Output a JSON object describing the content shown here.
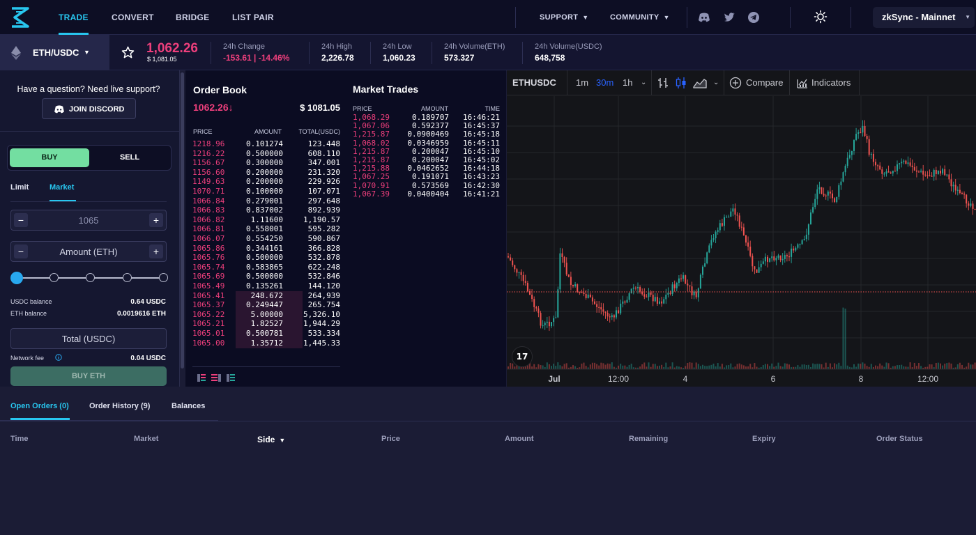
{
  "nav": {
    "links": [
      "TRADE",
      "CONVERT",
      "BRIDGE",
      "LIST PAIR"
    ],
    "support": "SUPPORT",
    "community": "COMMUNITY",
    "network": "zkSync - Mainnet",
    "accent": "#28c6ef"
  },
  "ticker": {
    "pair": "ETH/USDC",
    "price": "1,062.26",
    "price_usd": "$ 1,081.05",
    "change_label": "24h Change",
    "change_value": "-153.61 | -14.46%",
    "high_label": "24h High",
    "high_value": "2,226.78",
    "low_label": "24h Low",
    "low_value": "1,060.23",
    "vol_eth_label": "24h Volume(ETH)",
    "vol_eth_value": "573.327",
    "vol_usdc_label": "24h Volume(USDC)",
    "vol_usdc_value": "648,758"
  },
  "left": {
    "question": "Have a question? Need live support?",
    "discord": "JOIN DISCORD",
    "buy": "BUY",
    "sell": "SELL",
    "tab_limit": "Limit",
    "tab_market": "Market",
    "price_field": "1065",
    "amount_field": "Amount (ETH)",
    "usdc_balance_label": "USDC balance",
    "usdc_balance": "0.64 USDC",
    "eth_balance_label": "ETH balance",
    "eth_balance": "0.0019616 ETH",
    "total_field": "Total (USDC)",
    "fee_label": "Network fee",
    "fee_value": "0.04 USDC",
    "submit": "BUY ETH"
  },
  "orderbook": {
    "title": "Order Book",
    "last_price": "1062.26↓",
    "last_price_usd": "$ 1081.05",
    "headers": [
      "PRICE",
      "AMOUNT",
      "TOTAL(USDC)"
    ],
    "rows": [
      {
        "price": "1218.96",
        "amount": "0.101274",
        "total": "123.448"
      },
      {
        "price": "1216.22",
        "amount": "0.500000",
        "total": "608.110"
      },
      {
        "price": "1156.67",
        "amount": "0.300000",
        "total": "347.001"
      },
      {
        "price": "1156.60",
        "amount": "0.200000",
        "total": "231.320"
      },
      {
        "price": "1149.63",
        "amount": "0.200000",
        "total": "229.926"
      },
      {
        "price": "1070.71",
        "amount": "0.100000",
        "total": "107.071"
      },
      {
        "price": "1066.84",
        "amount": "0.279001",
        "total": "297.648"
      },
      {
        "price": "1066.83",
        "amount": "0.837002",
        "total": "892.939"
      },
      {
        "price": "1066.82",
        "amount": "1.11600",
        "total": "1,190.57"
      },
      {
        "price": "1066.81",
        "amount": "0.558001",
        "total": "595.282"
      },
      {
        "price": "1066.07",
        "amount": "0.554250",
        "total": "590.867"
      },
      {
        "price": "1065.86",
        "amount": "0.344161",
        "total": "366.828"
      },
      {
        "price": "1065.76",
        "amount": "0.500000",
        "total": "532.878"
      },
      {
        "price": "1065.74",
        "amount": "0.583865",
        "total": "622.248"
      },
      {
        "price": "1065.69",
        "amount": "0.500000",
        "total": "532.846"
      },
      {
        "price": "1065.49",
        "amount": "0.135261",
        "total": "144.120"
      },
      {
        "price": "1065.41",
        "amount": "248.672",
        "total": "264,939"
      },
      {
        "price": "1065.37",
        "amount": "0.249447",
        "total": "265.754"
      },
      {
        "price": "1065.22",
        "amount": "5.00000",
        "total": "5,326.10"
      },
      {
        "price": "1065.21",
        "amount": "1.82527",
        "total": "1,944.29"
      },
      {
        "price": "1065.01",
        "amount": "0.500781",
        "total": "533.334"
      },
      {
        "price": "1065.00",
        "amount": "1.35712",
        "total": "1,445.33"
      }
    ]
  },
  "trades": {
    "title": "Market Trades",
    "headers": [
      "PRICE",
      "AMOUNT",
      "TIME"
    ],
    "rows": [
      {
        "price": "1,068.29",
        "amount": "0.189707",
        "time": "16:46:21"
      },
      {
        "price": "1,067.06",
        "amount": "0.592377",
        "time": "16:45:37"
      },
      {
        "price": "1,215.87",
        "amount": "0.0900469",
        "time": "16:45:18"
      },
      {
        "price": "1,068.02",
        "amount": "0.0346959",
        "time": "16:45:11"
      },
      {
        "price": "1,215.87",
        "amount": "0.200047",
        "time": "16:45:10"
      },
      {
        "price": "1,215.87",
        "amount": "0.200047",
        "time": "16:45:02"
      },
      {
        "price": "1,215.88",
        "amount": "0.0462652",
        "time": "16:44:18"
      },
      {
        "price": "1,067.25",
        "amount": "0.191071",
        "time": "16:43:23"
      },
      {
        "price": "1,070.91",
        "amount": "0.573569",
        "time": "16:42:30"
      },
      {
        "price": "1,067.39",
        "amount": "0.0400404",
        "time": "16:41:21"
      }
    ]
  },
  "chart": {
    "symbol": "ETHUSDC",
    "intervals": [
      "1m",
      "30m",
      "1h"
    ],
    "active_interval": "30m",
    "compare": "Compare",
    "indicators": "Indicators",
    "x_ticks": [
      "Jul",
      "12:00",
      "4",
      "6",
      "8",
      "12:00"
    ],
    "up_color": "#26a69a",
    "down_color": "#ef5350"
  },
  "bottom": {
    "tabs": [
      "Open Orders (0)",
      "Order History (9)",
      "Balances"
    ],
    "columns": [
      "Time",
      "Market",
      "Side",
      "Price",
      "Amount",
      "Remaining",
      "Expiry",
      "Order Status"
    ]
  }
}
